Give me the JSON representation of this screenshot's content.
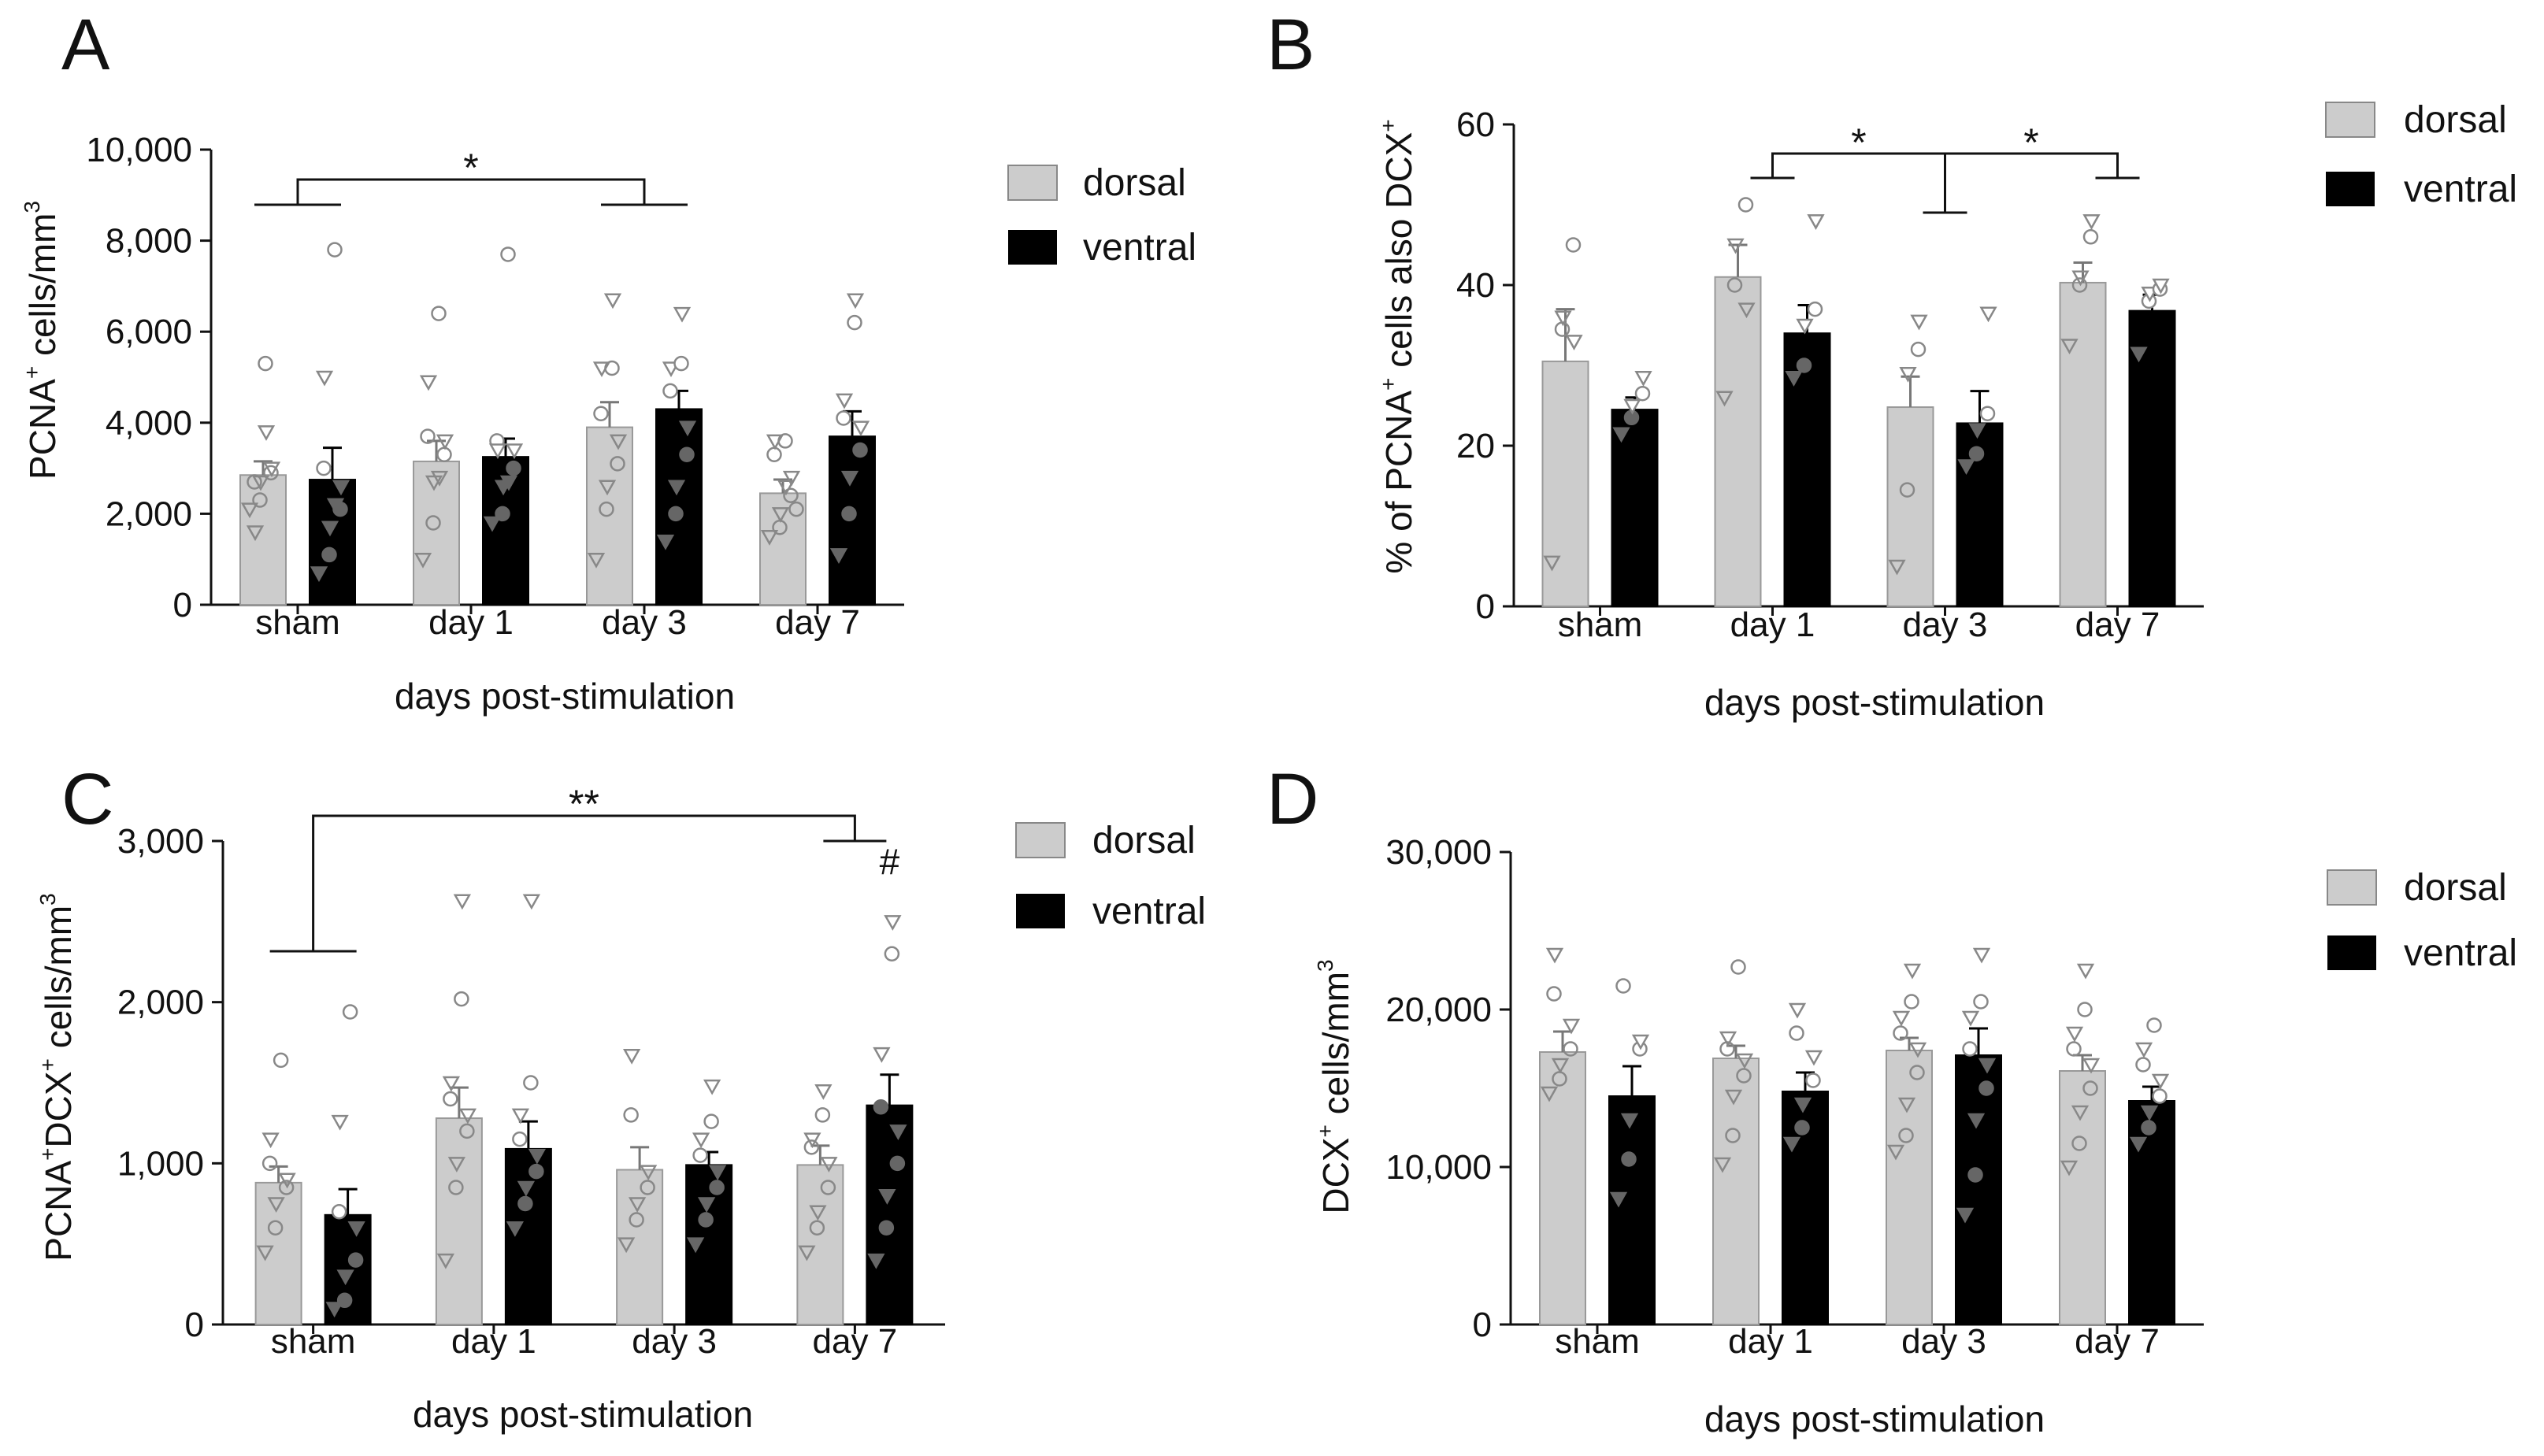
{
  "chart_data": [
    {
      "id": "A",
      "type": "bar",
      "panel_label": "A",
      "xlabel": "days post-stimulation",
      "ylabel_base": "PCNA",
      "ylabel_sup": "+",
      "ylabel_rest": " cells/mm",
      "ylabel_sup2": "3",
      "categories": [
        "sham",
        "day 1",
        "day 3",
        "day 7"
      ],
      "ylim": [
        0,
        10000
      ],
      "yticks": [
        0,
        2000,
        4000,
        6000,
        8000,
        10000
      ],
      "ytick_labels": [
        "0",
        "2,000",
        "4,000",
        "6,000",
        "8,000",
        "10,000"
      ],
      "legend": {
        "labels": [
          "dorsal",
          "ventral"
        ],
        "placement": "top-right"
      },
      "series": [
        {
          "name": "dorsal",
          "color": "#cccccc",
          "values": [
            2850,
            3150,
            3900,
            2450
          ],
          "sem": [
            300,
            450,
            550,
            300
          ],
          "points": [
            [
              2100,
              2300,
              2700,
              2900,
              3000,
              2700,
              1600,
              5300,
              3800
            ],
            [
              1000,
              1800,
              2700,
              3300,
              3600,
              3700,
              4900,
              6400,
              2800
            ],
            [
              1000,
              2100,
              2600,
              3100,
              3600,
              4200,
              5200,
              5200,
              6700
            ],
            [
              1500,
              1700,
              2000,
              2400,
              2800,
              3300,
              3600,
              3600,
              2600,
              2100
            ]
          ]
        },
        {
          "name": "ventral",
          "color": "#000000",
          "values": [
            2750,
            3250,
            4300,
            3700
          ],
          "sem": [
            700,
            400,
            400,
            550
          ],
          "points": [
            [
              700,
              1100,
              1700,
              2100,
              2600,
              3000,
              5000,
              7800,
              2200
            ],
            [
              1800,
              2000,
              2600,
              3000,
              3400,
              3600,
              3400,
              7700,
              2700
            ],
            [
              1400,
              2000,
              2600,
              3300,
              3900,
              4700,
              5200,
              5300,
              6400
            ],
            [
              1100,
              2000,
              2800,
              3400,
              3900,
              4100,
              4500,
              6200,
              6700
            ]
          ]
        }
      ],
      "significance": [
        {
          "label": "*",
          "from": "sham",
          "to": "day 3"
        }
      ]
    },
    {
      "id": "B",
      "type": "bar",
      "panel_label": "B",
      "xlabel": "days post-stimulation",
      "ylabel_base": "% of PCNA",
      "ylabel_sup": "+",
      "ylabel_rest": " cells also DCX",
      "ylabel_sup2": "+",
      "categories": [
        "sham",
        "day 1",
        "day 3",
        "day 7"
      ],
      "ylim": [
        0,
        60
      ],
      "yticks": [
        0,
        20,
        40,
        60
      ],
      "ytick_labels": [
        "0",
        "20",
        "40",
        "60"
      ],
      "legend": {
        "labels": [
          "dorsal",
          "ventral"
        ],
        "placement": "top-right"
      },
      "series": [
        {
          "name": "dorsal",
          "color": "#cccccc",
          "values": [
            30.5,
            41,
            24.8,
            40.3
          ],
          "sem": [
            6.5,
            4,
            3.8,
            2.5
          ],
          "points": [
            [
              5.5,
              34.5,
              36,
              45,
              33
            ],
            [
              26,
              40,
              45,
              50,
              37
            ],
            [
              5,
              14.5,
              29,
              32,
              35.5
            ],
            [
              32.5,
              40,
              41,
              46,
              48
            ]
          ]
        },
        {
          "name": "ventral",
          "color": "#000000",
          "values": [
            24.5,
            34,
            22.8,
            36.8
          ],
          "sem": [
            1.5,
            3.5,
            4,
            2
          ],
          "points": [
            [
              21.5,
              23.5,
              25,
              26.5,
              28.5
            ],
            [
              28.5,
              30,
              35,
              37,
              48
            ],
            [
              17.5,
              19,
              22,
              24,
              36.5
            ],
            [
              31.5,
              38,
              39,
              39.5,
              40
            ]
          ]
        }
      ],
      "significance": [
        {
          "label": "*",
          "from": "day 1",
          "to": "day 3"
        },
        {
          "label": "*",
          "from": "day 3",
          "to": "day 7"
        }
      ]
    },
    {
      "id": "C",
      "type": "bar",
      "panel_label": "C",
      "xlabel": "days post-stimulation",
      "ylabel_base": "PCNA",
      "ylabel_sup": "+",
      "ylabel_rest": "DCX",
      "ylabel_sup2": "+",
      "ylabel_tail": " cells/mm",
      "ylabel_sup3": "3",
      "categories": [
        "sham",
        "day 1",
        "day 3",
        "day 7"
      ],
      "ylim": [
        0,
        3000
      ],
      "yticks": [
        0,
        1000,
        2000,
        3000
      ],
      "ytick_labels": [
        "0",
        "1,000",
        "2,000",
        "3,000"
      ],
      "legend": {
        "labels": [
          "dorsal",
          "ventral"
        ],
        "placement": "top-right"
      },
      "series": [
        {
          "name": "dorsal",
          "color": "#cccccc",
          "values": [
            880,
            1280,
            960,
            990
          ],
          "sem": [
            100,
            190,
            140,
            120
          ],
          "points": [
            [
              450,
              600,
              750,
              850,
              900,
              1000,
              1150,
              1640
            ],
            [
              400,
              850,
              1000,
              1200,
              1300,
              1400,
              1500,
              2020,
              2630
            ],
            [
              500,
              650,
              750,
              850,
              950,
              1300,
              1670
            ],
            [
              450,
              600,
              700,
              850,
              1000,
              1100,
              1150,
              1300,
              1450
            ]
          ]
        },
        {
          "name": "ventral",
          "color": "#000000",
          "values": [
            680,
            1090,
            990,
            1360
          ],
          "sem": [
            160,
            170,
            80,
            190
          ],
          "points": [
            [
              100,
              150,
              300,
              400,
              600,
              700,
              1260,
              1940
            ],
            [
              600,
              750,
              850,
              950,
              1050,
              1150,
              1300,
              1500,
              2630
            ],
            [
              500,
              650,
              750,
              850,
              950,
              1050,
              1150,
              1260,
              1480
            ],
            [
              400,
              600,
              800,
              1000,
              1200,
              1350,
              1680,
              2300,
              2500
            ]
          ]
        }
      ],
      "significance": [
        {
          "label": "**",
          "from": "sham",
          "to": "day 7"
        }
      ],
      "annotations": [
        {
          "text": "#",
          "category": "day 7",
          "series": "ventral"
        }
      ]
    },
    {
      "id": "D",
      "type": "bar",
      "panel_label": "D",
      "xlabel": "days post-stimulation",
      "ylabel_base": "DCX",
      "ylabel_sup": "+",
      "ylabel_rest": " cells/mm",
      "ylabel_sup2": "3",
      "categories": [
        "sham",
        "day 1",
        "day 3",
        "day 7"
      ],
      "ylim": [
        0,
        30000
      ],
      "yticks": [
        0,
        10000,
        20000,
        30000
      ],
      "ytick_labels": [
        "0",
        "10,000",
        "20,000",
        "30,000"
      ],
      "legend": {
        "labels": [
          "dorsal",
          "ventral"
        ],
        "placement": "top-right"
      },
      "series": [
        {
          "name": "dorsal",
          "color": "#cccccc",
          "values": [
            17300,
            16900,
            17400,
            16100
          ],
          "sem": [
            1300,
            800,
            800,
            1000
          ],
          "points": [
            [
              14700,
              15600,
              16500,
              17500,
              19000,
              21000,
              23500
            ],
            [
              10200,
              12000,
              14500,
              15800,
              16800,
              17500,
              18200,
              22700
            ],
            [
              11000,
              12000,
              14000,
              16000,
              17500,
              18500,
              19500,
              20500,
              22500
            ],
            [
              10000,
              11500,
              13500,
              15000,
              16500,
              17500,
              18500,
              20000,
              22500
            ]
          ]
        },
        {
          "name": "ventral",
          "color": "#000000",
          "values": [
            14500,
            14800,
            17100,
            14200
          ],
          "sem": [
            1900,
            1200,
            1700,
            900
          ],
          "points": [
            [
              8000,
              10500,
              13000,
              17500,
              18000,
              21500
            ],
            [
              11500,
              12500,
              14000,
              15500,
              17000,
              18500,
              20000
            ],
            [
              7000,
              9500,
              13000,
              15000,
              16500,
              17500,
              19500,
              20500,
              23500
            ],
            [
              11500,
              12500,
              13500,
              14500,
              15500,
              16500,
              17500,
              19000
            ]
          ]
        }
      ],
      "significance": []
    }
  ]
}
